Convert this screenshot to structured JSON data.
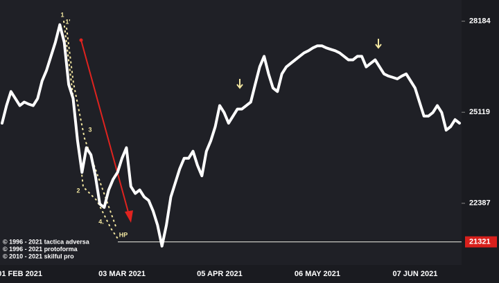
{
  "chart_data": {
    "type": "line",
    "log_scale": true,
    "color": "#ffffff",
    "categories": [
      null,
      null,
      null,
      null,
      "01 FEB 2021",
      null,
      null,
      null,
      null,
      null,
      null,
      null,
      null,
      null,
      null,
      null,
      null,
      null,
      null,
      null,
      null,
      null,
      null,
      null,
      null,
      null,
      null,
      "03 MAR 2021",
      null,
      null,
      null,
      null,
      null,
      null,
      null,
      null,
      null,
      null,
      null,
      null,
      null,
      null,
      null,
      null,
      null,
      null,
      null,
      null,
      null,
      "05 APR 2021",
      null,
      null,
      null,
      null,
      null,
      null,
      null,
      null,
      null,
      null,
      null,
      null,
      null,
      null,
      null,
      null,
      null,
      null,
      null,
      null,
      null,
      "06 MAY 2021",
      null,
      null,
      null,
      null,
      null,
      null,
      null,
      null,
      null,
      null,
      null,
      null,
      null,
      null,
      null,
      null,
      null,
      null,
      null,
      null,
      null,
      "07 JUN 2021",
      null,
      null,
      null,
      null,
      null,
      null,
      null,
      null,
      null,
      null
    ],
    "values": [
      24775,
      25332,
      25786,
      25558,
      25332,
      25445,
      25377,
      25332,
      25558,
      26133,
      26483,
      26959,
      27442,
      28059,
      27442,
      26017,
      25558,
      24231,
      23281,
      24017,
      23804,
      23178,
      22368,
      22269,
      22769,
      23075,
      23281,
      23698,
      24017,
      22871,
      22668,
      22769,
      22568,
      22468,
      22170,
      21779,
      21206,
      21779,
      22568,
      22972,
      23385,
      23698,
      23698,
      23910,
      23489,
      23178,
      23910,
      24231,
      24666,
      25332,
      25108,
      24775,
      24996,
      25220,
      25220,
      25332,
      25445,
      26017,
      26601,
      26959,
      26366,
      25901,
      25786,
      26366,
      26601,
      26720,
      26839,
      26959,
      27079,
      27151,
      27248,
      27320,
      27320,
      27248,
      27199,
      27151,
      27079,
      26959,
      26839,
      26839,
      26959,
      26959,
      26601,
      26720,
      26839,
      26601,
      26366,
      26296,
      26249,
      26202,
      26296,
      26366,
      26133,
      25901,
      25445,
      24996,
      24996,
      25108,
      25332,
      25108,
      24556,
      24666,
      24886,
      24775
    ],
    "ylim": [
      20670,
      28950
    ],
    "yticks": [
      28184,
      25119,
      22387
    ],
    "hp_level": 21321,
    "annotations": [
      "1",
      "1'",
      "3",
      "2",
      "4.",
      "HP"
    ],
    "credits": [
      "© 1996 - 2021 tactica adversa",
      "© 1996 - 2021 protoforma",
      "© 2010 - 2021 skilful pro"
    ]
  }
}
